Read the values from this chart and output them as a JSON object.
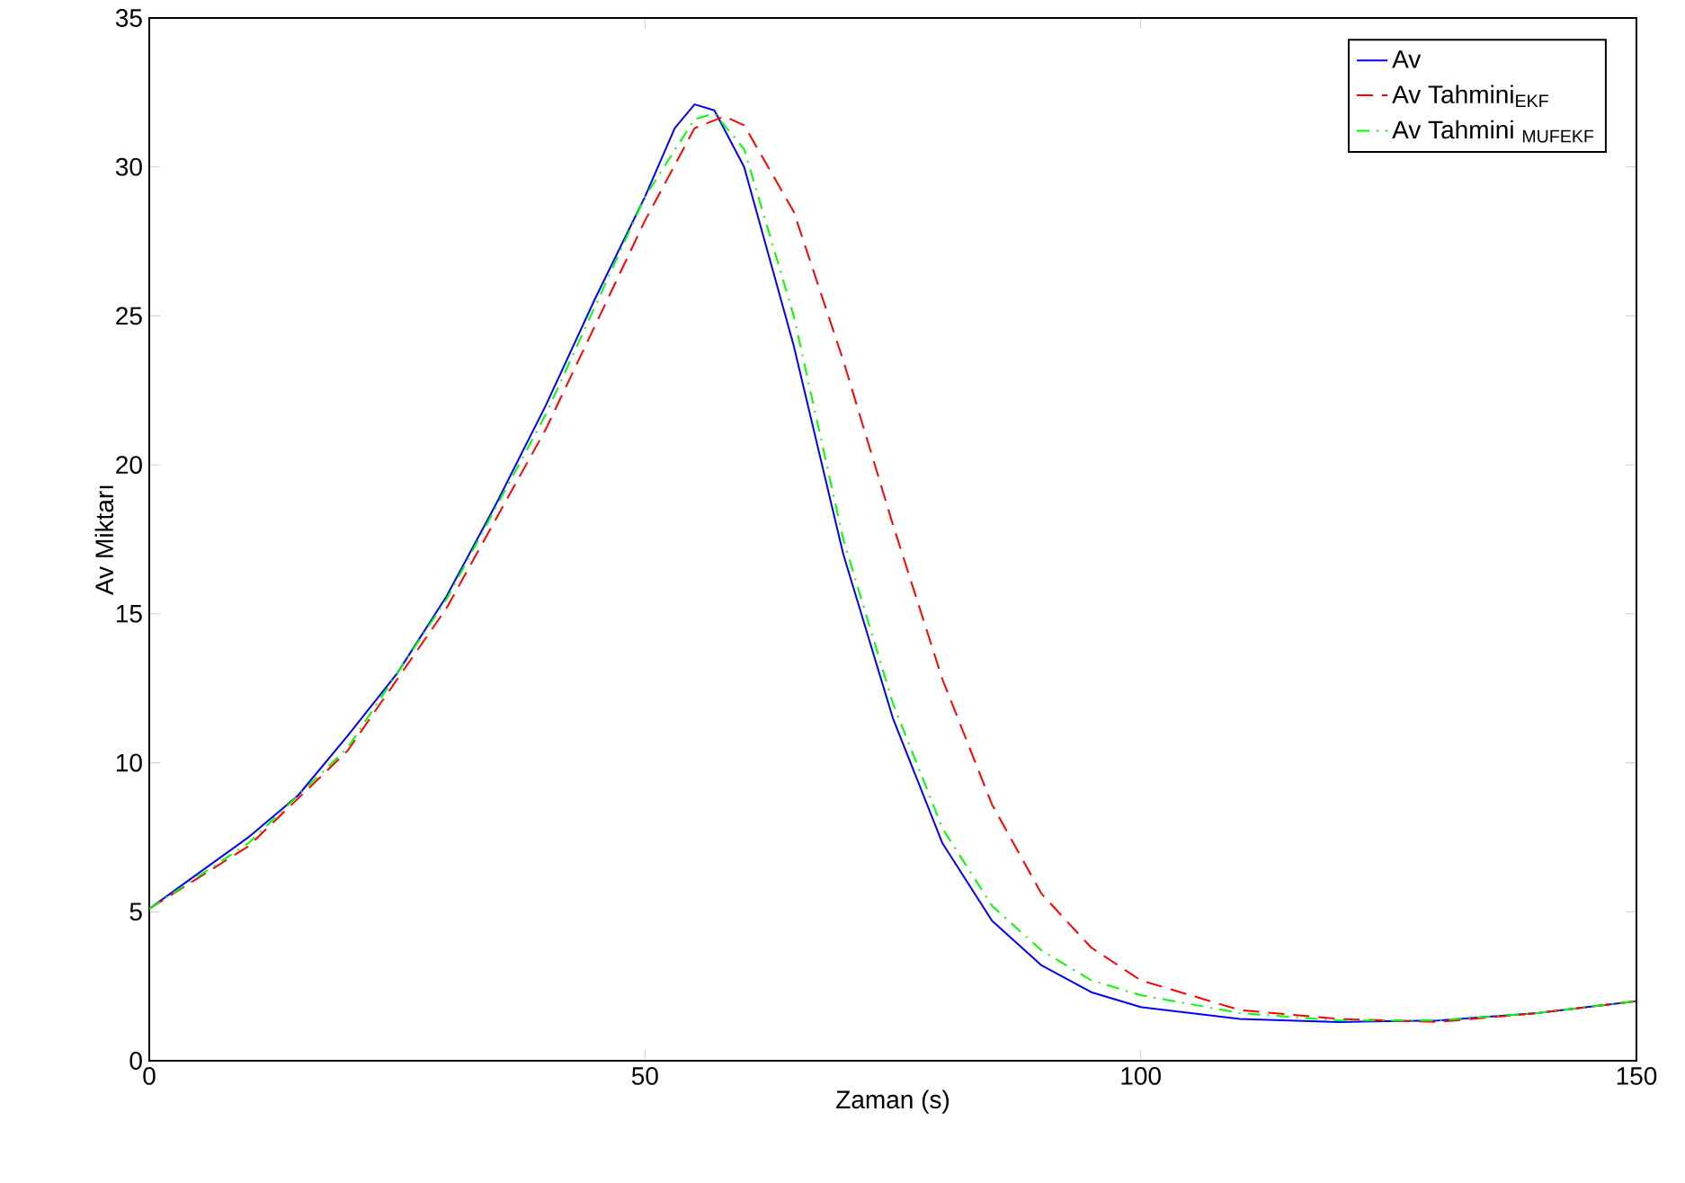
{
  "chart_data": {
    "type": "line",
    "xlabel": "Zaman (s)",
    "ylabel": "Av Miktarı",
    "xlim": [
      0,
      150
    ],
    "ylim": [
      0,
      35
    ],
    "xticks": [
      0,
      50,
      100,
      150
    ],
    "yticks": [
      0,
      5,
      10,
      15,
      20,
      25,
      30,
      35
    ],
    "grid": false,
    "legend": "top right",
    "marker": "none",
    "series": [
      {
        "name": "Av",
        "color": "#0000ff",
        "line_style": "solid",
        "x": [
          0,
          5,
          10,
          15,
          20,
          25,
          30,
          35,
          40,
          45,
          50,
          53,
          55,
          57,
          60,
          65,
          70,
          75,
          80,
          85,
          90,
          95,
          100,
          110,
          120,
          130,
          140,
          150
        ],
        "values": [
          5.1,
          6.3,
          7.5,
          8.9,
          10.9,
          13.0,
          15.6,
          18.7,
          22.0,
          25.6,
          29.0,
          31.3,
          32.1,
          31.9,
          30.0,
          24.0,
          17.0,
          11.5,
          7.3,
          4.7,
          3.2,
          2.3,
          1.8,
          1.4,
          1.3,
          1.35,
          1.6,
          2.0
        ]
      },
      {
        "name": "Av Tahmini$_{EKF}$",
        "color": "#ff0000",
        "line_style": "dashed",
        "x": [
          0,
          10,
          20,
          30,
          40,
          50,
          55,
          58,
          60,
          65,
          70,
          75,
          80,
          85,
          90,
          95,
          100,
          105,
          110,
          120,
          130,
          140,
          150
        ],
        "values": [
          5.1,
          7.2,
          10.4,
          15.2,
          21.2,
          28.2,
          31.3,
          31.7,
          31.4,
          28.5,
          23.5,
          18.0,
          12.8,
          8.6,
          5.6,
          3.8,
          2.7,
          2.2,
          1.7,
          1.4,
          1.3,
          1.6,
          2.0
        ]
      },
      {
        "name": "Av Tahmini $_{MUFEKF}$",
        "color": "#00ff00",
        "line_style": "dashdot",
        "x": [
          0,
          10,
          20,
          30,
          40,
          50,
          55,
          57,
          60,
          65,
          70,
          75,
          80,
          85,
          90,
          95,
          100,
          105,
          110,
          120,
          130,
          140,
          150
        ],
        "values": [
          5.1,
          7.3,
          10.5,
          15.5,
          21.7,
          29.0,
          31.6,
          31.8,
          30.6,
          25.0,
          17.5,
          12.0,
          7.8,
          5.2,
          3.7,
          2.7,
          2.2,
          1.9,
          1.6,
          1.35,
          1.35,
          1.6,
          2.0
        ]
      }
    ]
  }
}
